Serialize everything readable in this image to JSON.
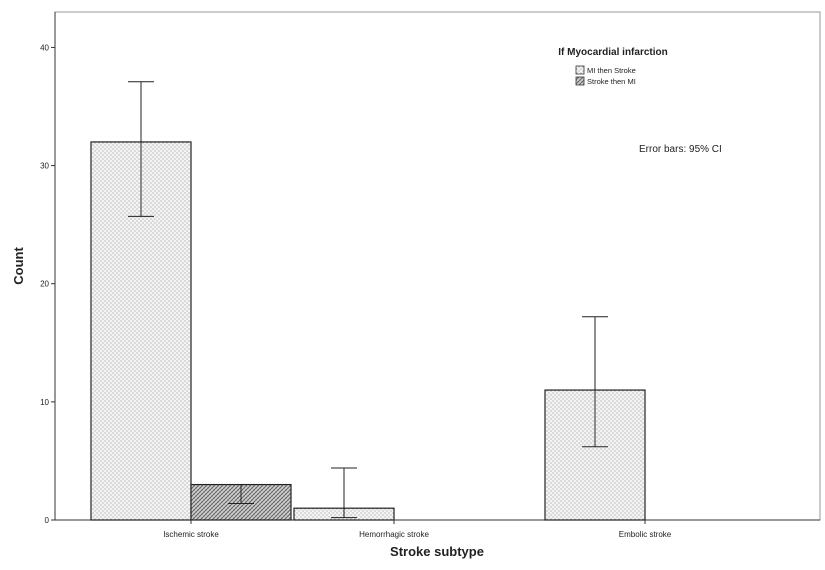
{
  "chart_data": {
    "type": "bar",
    "title": "",
    "xlabel": "Stroke subtype",
    "ylabel": "Count",
    "categories": [
      "Ischemic stroke",
      "Hemorrhagic stroke",
      "Embolic stroke"
    ],
    "ylim": [
      0,
      43
    ],
    "yticks": [
      0,
      10,
      20,
      30,
      40
    ],
    "legend": {
      "title": "If Myocardial infarction",
      "position": "top-right"
    },
    "series": [
      {
        "name": "MI then Stroke",
        "values": [
          32,
          1,
          11
        ],
        "error_low": [
          25.7,
          0.2,
          6.2
        ],
        "error_high": [
          37.1,
          4.4,
          17.2
        ]
      },
      {
        "name": "Stroke then MI",
        "values": [
          3,
          0,
          0
        ],
        "error_low": [
          1.4,
          null,
          null
        ],
        "error_high": [
          3.0,
          null,
          null
        ]
      }
    ],
    "annotation": "Error bars: 95% CI",
    "grid": false
  }
}
